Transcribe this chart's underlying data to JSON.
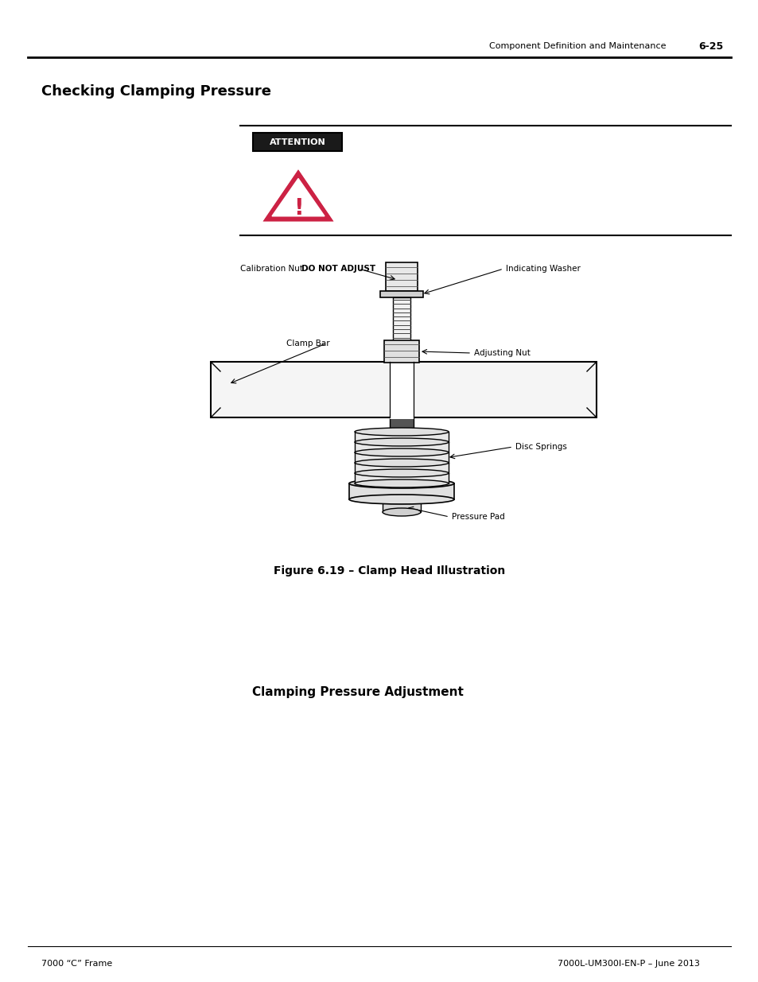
{
  "page_header_left": "Component Definition and Maintenance",
  "page_header_right": "6-25",
  "section_title": "Checking Clamping Pressure",
  "attention_label": "ATTENTION",
  "figure_caption": "Figure 6.19 – Clamp Head Illustration",
  "subsection_title": "Clamping Pressure Adjustment",
  "label_cal_nut_normal": "Calibration Nut - ",
  "label_cal_nut_bold": "DO NOT ADJUST",
  "label_indicating_washer": "Indicating Washer",
  "label_clamp_bar": "Clamp Bar",
  "label_adjusting_nut": "Adjusting Nut",
  "label_disc_springs": "Disc Springs",
  "label_pressure_pad": "Pressure Pad",
  "footer_left": "7000 “C” Frame",
  "footer_right": "7000L-UM300I-EN-P – June 2013",
  "bg_color": "#ffffff",
  "text_color": "#000000",
  "attention_bg": "#1a1a1a",
  "attention_text": "#ffffff",
  "warning_color": "#cc2244",
  "line_color": "#000000"
}
